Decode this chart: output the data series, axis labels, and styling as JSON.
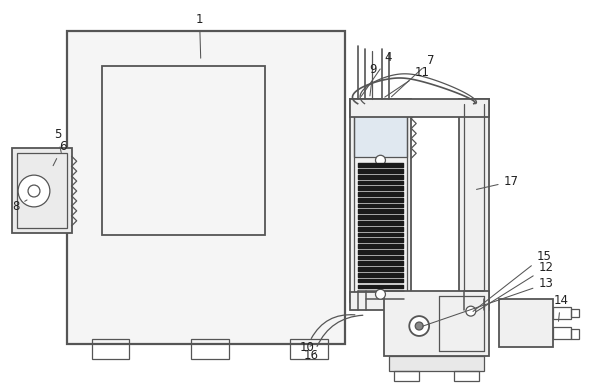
{
  "bg_color": "#ffffff",
  "lc": "#555555",
  "lw": 1.3,
  "tlw": 0.9
}
